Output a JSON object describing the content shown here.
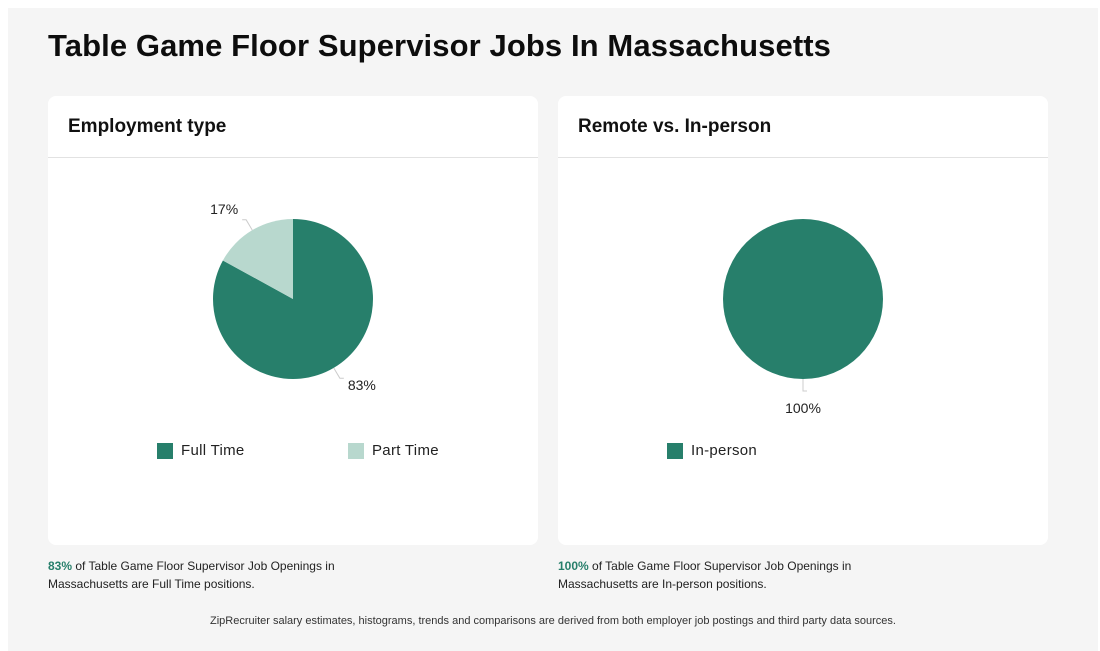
{
  "page": {
    "title": "Table Game Floor Supervisor Jobs In Massachusetts",
    "footer": "ZipRecruiter salary estimates, histograms, trends and comparisons are derived from both employer job postings and third party data sources."
  },
  "colors": {
    "full_time": "#277f6b",
    "part_time": "#b8d8ce",
    "in_person": "#277f6b",
    "highlight": "#277f6b"
  },
  "cards": {
    "employment": {
      "title": "Employment type",
      "caption_pct": "83%",
      "caption_text": " of Table Game Floor Supervisor Job Openings in Massachusetts are Full Time positions.",
      "legend": [
        "Full Time",
        "Part Time"
      ]
    },
    "remote": {
      "title": "Remote vs. In-person",
      "caption_pct": "100%",
      "caption_text": " of Table Game Floor Supervisor Job Openings in Massachusetts are In-person positions.",
      "legend": [
        "In-person"
      ]
    }
  },
  "chart_data": [
    {
      "type": "pie",
      "title": "Employment type",
      "categories": [
        "Full Time",
        "Part Time"
      ],
      "values": [
        83,
        17
      ],
      "labels": [
        "83%",
        "17%"
      ],
      "legend": "bottom"
    },
    {
      "type": "pie",
      "title": "Remote vs. In-person",
      "categories": [
        "In-person"
      ],
      "values": [
        100
      ],
      "labels": [
        "100%"
      ],
      "legend": "bottom"
    }
  ]
}
